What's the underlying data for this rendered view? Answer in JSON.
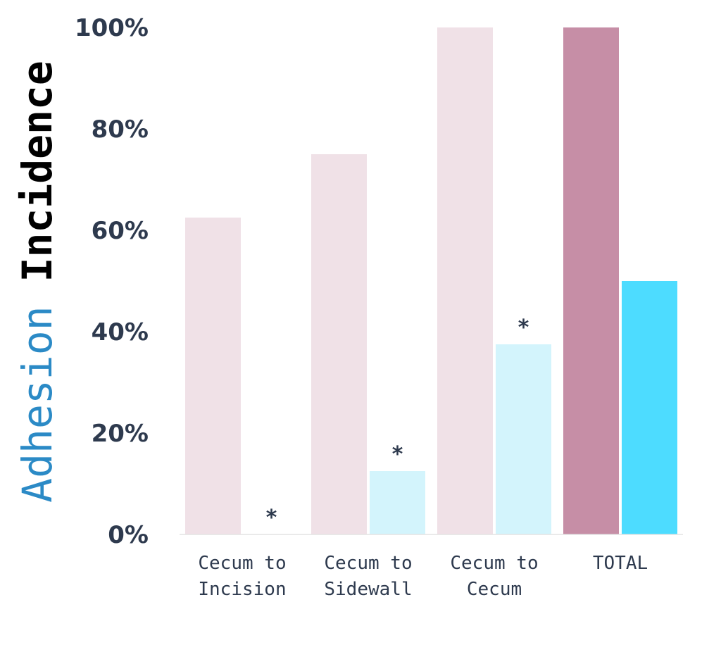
{
  "chart_data": {
    "type": "bar",
    "ylabel": {
      "part1": "Adhesion",
      "part2": "Incidence"
    },
    "y_ticks": [
      "0%",
      "20%",
      "40%",
      "60%",
      "80%",
      "100%"
    ],
    "ylim": [
      0,
      100
    ],
    "grid": false,
    "categories": [
      {
        "lines": [
          "Cecum to",
          "Incision"
        ]
      },
      {
        "lines": [
          "Cecum to",
          "Sidewall"
        ]
      },
      {
        "lines": [
          "Cecum to",
          "Cecum"
        ]
      },
      {
        "lines": [
          "TOTAL"
        ]
      }
    ],
    "series": [
      {
        "values": [
          62.5,
          75,
          100,
          100
        ],
        "colors": [
          "#f0e1e7",
          "#f0e1e7",
          "#f0e1e7",
          "#c68ea6"
        ]
      },
      {
        "values": [
          0,
          12.5,
          37.5,
          50
        ],
        "colors": [
          "#d3f4fc",
          "#d3f4fc",
          "#d3f4fc",
          "#4ddcff"
        ],
        "annotations": [
          "*",
          "*",
          "*",
          ""
        ]
      }
    ]
  }
}
